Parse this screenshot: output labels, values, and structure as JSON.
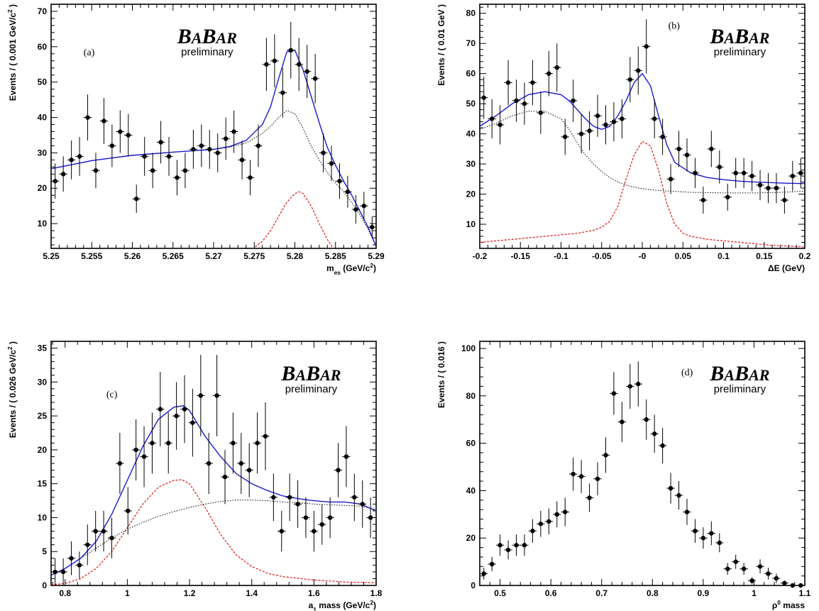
{
  "logo": {
    "b1": "B",
    "a1": "A",
    "b2": "B",
    "a2": "AR",
    "subtitle": "preliminary"
  },
  "colors": {
    "total_fit": "#1a1acc",
    "signal": "#e01010",
    "background": "#000000",
    "points": "#000000"
  },
  "chart_data": [
    {
      "type": "scatter",
      "label": "(a)",
      "xlabel": "m_es (GeV/c^2)",
      "ylabel": "Events / ( 0.001 GeV/c^2 )",
      "xlim": [
        5.25,
        5.29
      ],
      "ylim": [
        3,
        72
      ],
      "xticks": [
        5.25,
        5.255,
        5.26,
        5.265,
        5.27,
        5.275,
        5.28,
        5.285,
        5.29
      ],
      "xtick_labels": [
        "5.25",
        "5.255",
        "5.26",
        "5.265",
        "5.27",
        "5.275",
        "5.28",
        "5.285",
        "5.29"
      ],
      "yticks": [
        10,
        20,
        30,
        40,
        50,
        60,
        70
      ],
      "ytick_labels": [
        "10",
        "20",
        "30",
        "40",
        "50",
        "60",
        "70"
      ],
      "logo_position": "top-center",
      "x": [
        5.2505,
        5.2515,
        5.2525,
        5.2535,
        5.2545,
        5.2555,
        5.2565,
        5.2575,
        5.2585,
        5.2595,
        5.2605,
        5.2615,
        5.2625,
        5.2635,
        5.2645,
        5.2655,
        5.2665,
        5.2675,
        5.2685,
        5.2695,
        5.2705,
        5.2715,
        5.2725,
        5.2735,
        5.2745,
        5.2755,
        5.2765,
        5.2775,
        5.2785,
        5.2795,
        5.2805,
        5.2815,
        5.2825,
        5.2835,
        5.2845,
        5.2855,
        5.2865,
        5.2875,
        5.2885,
        5.2895
      ],
      "y": [
        22,
        24,
        28,
        29,
        40,
        25,
        39,
        32,
        36,
        35,
        17,
        29,
        25,
        33,
        29,
        23,
        25,
        31,
        32,
        31,
        30,
        34,
        36,
        28,
        23,
        32,
        55,
        56,
        47,
        59,
        55,
        53,
        51,
        30,
        27,
        22,
        19,
        14,
        15,
        9
      ],
      "yerr": [
        5,
        5,
        5.5,
        5.5,
        6.5,
        5,
        6.5,
        6,
        6,
        6,
        4,
        5.5,
        5,
        6,
        5.5,
        5,
        5,
        5.5,
        6,
        5.5,
        5.5,
        6,
        6,
        5.5,
        5,
        6,
        7.5,
        7.5,
        7,
        8,
        7.5,
        7.5,
        7,
        5.5,
        5,
        5,
        4.5,
        4,
        4,
        3
      ],
      "series": [
        {
          "role": "total",
          "x": [
            5.25,
            5.255,
            5.26,
            5.265,
            5.27,
            5.272,
            5.274,
            5.276,
            5.277,
            5.278,
            5.279,
            5.28,
            5.281,
            5.282,
            5.283,
            5.284,
            5.285,
            5.286,
            5.287,
            5.288,
            5.289,
            5.29
          ],
          "y": [
            25.5,
            27.8,
            29.3,
            30.2,
            31.0,
            31.8,
            33.5,
            38.0,
            43.0,
            51.0,
            58.5,
            59.0,
            53.5,
            46.0,
            38.5,
            31.5,
            26.5,
            22.0,
            18.0,
            13.5,
            9.0,
            3.5
          ]
        },
        {
          "role": "background",
          "x": [
            5.25,
            5.255,
            5.26,
            5.265,
            5.27,
            5.272,
            5.274,
            5.276,
            5.277,
            5.278,
            5.279,
            5.28,
            5.281,
            5.282,
            5.283,
            5.284,
            5.285,
            5.286,
            5.287,
            5.288,
            5.289,
            5.29
          ],
          "y": [
            25.5,
            27.8,
            29.3,
            30.2,
            31.0,
            31.6,
            32.8,
            35.5,
            37.5,
            40.0,
            42.0,
            41.0,
            37.0,
            32.0,
            28.0,
            24.5,
            21.5,
            19.0,
            16.0,
            12.5,
            8.5,
            3.5
          ]
        },
        {
          "role": "signal",
          "x": [
            5.272,
            5.274,
            5.276,
            5.277,
            5.278,
            5.279,
            5.28,
            5.2805,
            5.281,
            5.282,
            5.283,
            5.284,
            5.285,
            5.286
          ],
          "y": [
            0,
            1.5,
            5.0,
            8.0,
            12.0,
            16.0,
            18.5,
            19.0,
            18.5,
            15.0,
            10.0,
            5.5,
            2.0,
            0
          ]
        }
      ]
    },
    {
      "type": "scatter",
      "label": "(b)",
      "xlabel": "ΔE (GeV)",
      "ylabel": "Events / ( 0.01 GeV )",
      "xlim": [
        -0.2,
        0.2
      ],
      "ylim": [
        2,
        83
      ],
      "xticks": [
        -0.2,
        -0.15,
        -0.1,
        -0.05,
        0,
        0.05,
        0.1,
        0.15,
        0.2
      ],
      "xtick_labels": [
        "-0.2",
        "-0.15",
        "-0.1",
        "-0.05",
        "-0",
        "0.05",
        "0.1",
        "0.15",
        "0.2"
      ],
      "yticks": [
        10,
        20,
        30,
        40,
        50,
        60,
        70,
        80
      ],
      "ytick_labels": [
        "10",
        "20",
        "30",
        "40",
        "50",
        "60",
        "70",
        "80"
      ],
      "logo_position": "top-right",
      "x": [
        -0.195,
        -0.185,
        -0.175,
        -0.165,
        -0.155,
        -0.145,
        -0.135,
        -0.125,
        -0.115,
        -0.105,
        -0.095,
        -0.085,
        -0.075,
        -0.065,
        -0.055,
        -0.045,
        -0.035,
        -0.025,
        -0.015,
        -0.005,
        0.005,
        0.015,
        0.025,
        0.035,
        0.045,
        0.055,
        0.065,
        0.075,
        0.085,
        0.095,
        0.105,
        0.115,
        0.125,
        0.135,
        0.145,
        0.155,
        0.165,
        0.175,
        0.185,
        0.195
      ],
      "y": [
        52,
        45,
        43,
        57,
        51,
        50,
        57,
        47,
        60,
        62,
        39,
        51,
        40,
        41,
        46,
        43,
        44,
        45,
        58,
        61,
        69,
        45,
        39,
        25,
        35,
        33,
        27,
        18,
        35,
        29,
        19,
        27,
        27,
        26,
        23,
        22,
        22,
        18,
        26,
        27
      ],
      "yerr": [
        7,
        6.5,
        6.5,
        7.5,
        7,
        7,
        7.5,
        7,
        7.5,
        8,
        6,
        7,
        6.5,
        6.5,
        7,
        6.5,
        6.5,
        6.5,
        7.5,
        8,
        9,
        6.5,
        6,
        5,
        6,
        5.5,
        5,
        4.5,
        6,
        5.5,
        4.5,
        5,
        5,
        5,
        5,
        5,
        5,
        4.5,
        5,
        5
      ],
      "series": [
        {
          "role": "total",
          "x": [
            -0.2,
            -0.18,
            -0.16,
            -0.14,
            -0.12,
            -0.1,
            -0.09,
            -0.08,
            -0.07,
            -0.06,
            -0.05,
            -0.04,
            -0.03,
            -0.02,
            -0.01,
            0,
            0.01,
            0.02,
            0.03,
            0.04,
            0.06,
            0.08,
            0.1,
            0.12,
            0.14,
            0.16,
            0.18,
            0.2
          ],
          "y": [
            42.5,
            46.0,
            50.0,
            53.0,
            54.0,
            53.0,
            51.0,
            48.0,
            45.0,
            42.5,
            41.5,
            42.5,
            46.0,
            51.0,
            57.0,
            60.0,
            56.0,
            46.0,
            36.5,
            30.5,
            27.0,
            25.5,
            24.8,
            24.3,
            24.0,
            23.8,
            23.6,
            23.5
          ]
        },
        {
          "role": "background",
          "x": [
            -0.2,
            -0.18,
            -0.16,
            -0.14,
            -0.12,
            -0.1,
            -0.09,
            -0.08,
            -0.07,
            -0.06,
            -0.05,
            -0.04,
            -0.03,
            -0.02,
            -0.01,
            0,
            0.02,
            0.04,
            0.06,
            0.08,
            0.1,
            0.12,
            0.14,
            0.16,
            0.18,
            0.2
          ],
          "y": [
            41.5,
            43.5,
            46.0,
            47.5,
            47.5,
            45.0,
            41.5,
            37.0,
            33.0,
            30.0,
            27.5,
            25.5,
            24.0,
            23.0,
            22.3,
            21.8,
            21.2,
            20.9,
            20.6,
            20.5,
            20.4,
            20.4,
            20.4,
            20.5,
            20.7,
            21.0
          ]
        },
        {
          "role": "signal",
          "x": [
            -0.2,
            -0.16,
            -0.12,
            -0.08,
            -0.06,
            -0.05,
            -0.04,
            -0.03,
            -0.02,
            -0.01,
            0,
            0.01,
            0.02,
            0.03,
            0.04,
            0.05,
            0.06,
            0.08,
            0.12,
            0.16,
            0.2
          ],
          "y": [
            4.0,
            5.0,
            6.0,
            7.0,
            8.0,
            9.0,
            11.0,
            16.0,
            25.0,
            33.0,
            37.5,
            36.0,
            28.0,
            17.0,
            10.0,
            7.0,
            6.0,
            5.0,
            4.0,
            3.0,
            2.5
          ]
        }
      ]
    },
    {
      "type": "scatter",
      "label": "(c)",
      "xlabel": "a_1 mass (GeV/c^2)",
      "ylabel": "Events / ( 0.026 GeV/c^2 )",
      "xlim": [
        0.755,
        1.8
      ],
      "ylim": [
        0,
        36
      ],
      "xticks": [
        0.8,
        1.0,
        1.2,
        1.4,
        1.6,
        1.8
      ],
      "xtick_labels": [
        "0.8",
        "1",
        "1.2",
        "1.4",
        "1.6",
        "1.8"
      ],
      "yticks": [
        0,
        5,
        10,
        15,
        20,
        25,
        30,
        35
      ],
      "ytick_labels": [
        "0",
        "5",
        "10",
        "15",
        "20",
        "25",
        "30",
        "35"
      ],
      "logo_position": "top-right",
      "x": [
        0.768,
        0.794,
        0.82,
        0.846,
        0.872,
        0.898,
        0.924,
        0.95,
        0.976,
        1.002,
        1.028,
        1.054,
        1.08,
        1.106,
        1.132,
        1.158,
        1.184,
        1.21,
        1.236,
        1.262,
        1.288,
        1.314,
        1.34,
        1.366,
        1.392,
        1.418,
        1.444,
        1.47,
        1.496,
        1.522,
        1.548,
        1.574,
        1.6,
        1.626,
        1.652,
        1.678,
        1.704,
        1.73,
        1.756,
        1.782
      ],
      "y": [
        2,
        2,
        4,
        3,
        6,
        8,
        8,
        7,
        18,
        11,
        20,
        19,
        21,
        26,
        21,
        25,
        26,
        24,
        28,
        18,
        28,
        16,
        21,
        18,
        17,
        21,
        22,
        13,
        8,
        13,
        12,
        10,
        8,
        9,
        10,
        17,
        19,
        13,
        12,
        10
      ],
      "yerr": [
        2,
        2,
        2.5,
        2,
        3,
        3,
        3,
        3,
        4.5,
        3.5,
        4.5,
        4.5,
        4.5,
        5.5,
        4.5,
        5,
        5,
        5,
        6,
        4.5,
        6,
        4,
        4.5,
        4.5,
        4,
        4.5,
        5,
        3.5,
        3,
        3.5,
        3.5,
        3,
        3,
        3,
        3,
        4,
        4.5,
        3.5,
        3.5,
        3
      ],
      "series": [
        {
          "role": "total",
          "x": [
            0.755,
            0.8,
            0.85,
            0.9,
            0.95,
            1.0,
            1.05,
            1.1,
            1.15,
            1.18,
            1.2,
            1.25,
            1.3,
            1.35,
            1.4,
            1.45,
            1.5,
            1.55,
            1.6,
            1.65,
            1.7,
            1.75,
            1.8
          ],
          "y": [
            1.5,
            2.5,
            4.0,
            6.5,
            10.5,
            15.5,
            20.5,
            24.5,
            26.3,
            26.5,
            25.8,
            22.0,
            19.0,
            16.5,
            15.0,
            14.0,
            13.2,
            12.8,
            12.5,
            12.3,
            12.3,
            12.0,
            11.0
          ]
        },
        {
          "role": "background",
          "x": [
            0.755,
            0.8,
            0.85,
            0.9,
            0.95,
            1.0,
            1.05,
            1.1,
            1.15,
            1.2,
            1.25,
            1.3,
            1.35,
            1.4,
            1.45,
            1.5,
            1.55,
            1.6,
            1.65,
            1.7,
            1.75,
            1.8
          ],
          "y": [
            1.5,
            2.5,
            4.0,
            5.5,
            7.0,
            8.3,
            9.3,
            10.2,
            10.9,
            11.5,
            12.0,
            12.4,
            12.6,
            12.6,
            12.5,
            12.3,
            12.2,
            12.0,
            11.9,
            11.8,
            11.7,
            11.2
          ]
        },
        {
          "role": "signal",
          "x": [
            0.755,
            0.8,
            0.85,
            0.9,
            0.95,
            1.0,
            1.05,
            1.1,
            1.15,
            1.175,
            1.2,
            1.25,
            1.3,
            1.35,
            1.4,
            1.45,
            1.5,
            1.6,
            1.7,
            1.8
          ],
          "y": [
            0.1,
            0.3,
            1.0,
            2.5,
            5.0,
            8.5,
            12.0,
            14.5,
            15.5,
            15.6,
            15.0,
            11.5,
            7.5,
            4.5,
            2.8,
            1.8,
            1.3,
            0.8,
            0.5,
            0.4
          ]
        }
      ]
    },
    {
      "type": "scatter",
      "label": "(d)",
      "xlabel": "ρ^0 mass",
      "ylabel": "Events / ( 0.016 )",
      "xlim": [
        0.46,
        1.1
      ],
      "ylim": [
        0,
        103
      ],
      "xticks": [
        0.5,
        0.6,
        0.7,
        0.8,
        0.9,
        1.0,
        1.1
      ],
      "xtick_labels": [
        "0.5",
        "0.6",
        "0.7",
        "0.8",
        "0.9",
        "1",
        "1.1"
      ],
      "yticks": [
        0,
        20,
        40,
        60,
        80,
        100
      ],
      "ytick_labels": [
        "0",
        "20",
        "40",
        "60",
        "80",
        "100"
      ],
      "logo_position": "top-right",
      "x": [
        0.468,
        0.484,
        0.5,
        0.516,
        0.532,
        0.548,
        0.564,
        0.58,
        0.596,
        0.612,
        0.628,
        0.644,
        0.66,
        0.676,
        0.692,
        0.708,
        0.724,
        0.74,
        0.756,
        0.772,
        0.788,
        0.804,
        0.82,
        0.836,
        0.852,
        0.868,
        0.884,
        0.9,
        0.916,
        0.932,
        0.948,
        0.964,
        0.98,
        0.996,
        1.012,
        1.028,
        1.044,
        1.06,
        1.076,
        1.092
      ],
      "y": [
        5,
        9,
        17,
        15,
        17,
        17,
        23,
        26,
        27,
        30,
        31,
        47,
        46,
        37,
        45,
        55,
        81,
        69,
        84,
        85,
        70,
        64,
        59,
        41,
        38,
        31,
        23,
        20,
        22,
        18,
        7,
        10,
        7,
        2,
        8,
        5,
        3,
        1,
        0,
        0
      ],
      "yerr": [
        2.5,
        3,
        4.5,
        4,
        4.5,
        4.5,
        5,
        5.5,
        5.5,
        5.5,
        6,
        7,
        7,
        6,
        7,
        7.5,
        9,
        8.5,
        9.5,
        9.5,
        8.5,
        8,
        7.5,
        6.5,
        6,
        5.5,
        5,
        4.5,
        5,
        4,
        2.5,
        3,
        2.5,
        1.5,
        3,
        2.5,
        2,
        1,
        0.5,
        0.5
      ],
      "series": []
    }
  ]
}
